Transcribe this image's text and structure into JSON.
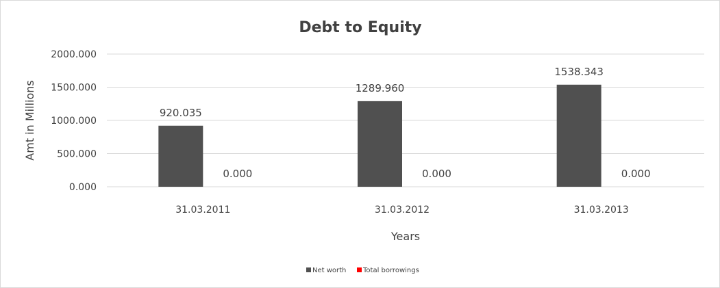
{
  "chart_data": {
    "type": "bar",
    "title": "Debt to Equity",
    "xlabel": "Years",
    "ylabel": "Amt in Millions",
    "categories": [
      "31.03.2011",
      "31.03.2012",
      "31.03.2013"
    ],
    "series": [
      {
        "name": "Net worth",
        "values": [
          920.035,
          1289.96,
          1538.343
        ],
        "labels": [
          "920.035",
          "1289.960",
          "1538.343"
        ],
        "color": "#505050"
      },
      {
        "name": "Total borrowings",
        "values": [
          0,
          0,
          0
        ],
        "labels": [
          "0.000",
          "0.000",
          "0.000"
        ],
        "color": "#ff0000"
      }
    ],
    "ylim": [
      0,
      2000
    ],
    "yticks": [
      "0.000",
      "500.000",
      "1000.000",
      "1500.000",
      "2000.000"
    ],
    "grid": true,
    "legend": "bottom"
  }
}
